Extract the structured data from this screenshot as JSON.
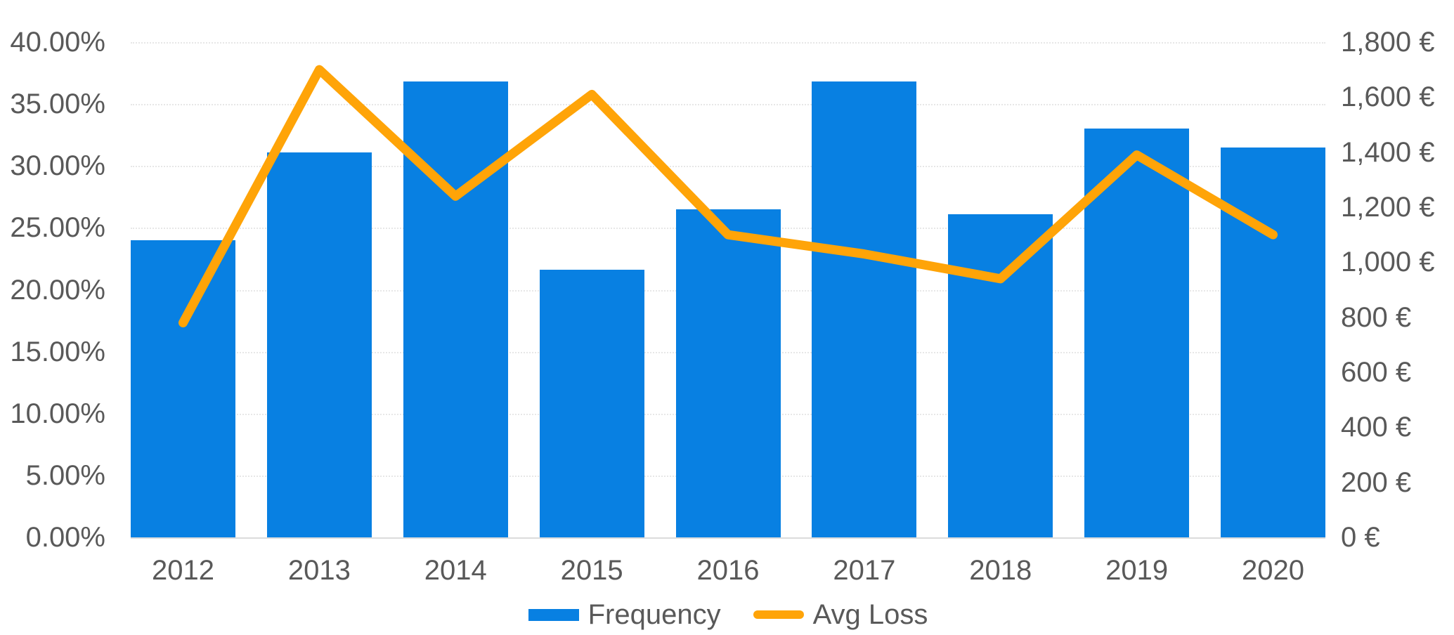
{
  "chart_data": {
    "type": "bar",
    "subtype": "combo-bar-line-dual-axis",
    "title": "",
    "categories": [
      "2012",
      "2013",
      "2014",
      "2015",
      "2016",
      "2017",
      "2018",
      "2019",
      "2020"
    ],
    "series": [
      {
        "name": "Frequency",
        "type": "bar",
        "axis": "left",
        "unit": "percent",
        "color": "#0880e2",
        "values": [
          24.0,
          31.1,
          36.8,
          21.6,
          26.5,
          36.8,
          26.1,
          33.0,
          31.5
        ]
      },
      {
        "name": "Avg Loss",
        "type": "line",
        "axis": "right",
        "unit": "EUR",
        "color": "#ffa408",
        "values": [
          780,
          1700,
          1240,
          1610,
          1100,
          1030,
          940,
          1390,
          1100
        ]
      }
    ],
    "left_axis": {
      "min": 0,
      "max": 40,
      "step": 5,
      "format": "percent",
      "tick_labels": [
        "40.00%",
        "35.00%",
        "30.00%",
        "25.00%",
        "20.00%",
        "15.00%",
        "10.00%",
        "5.00%",
        "0.00%"
      ]
    },
    "right_axis": {
      "min": 0,
      "max": 1800,
      "step": 200,
      "format": "euro",
      "tick_labels": [
        "1,800 €",
        "1,600 €",
        "1,400 €",
        "1,200 €",
        "1,000 €",
        "800 €",
        "600 €",
        "400 €",
        "200 €",
        "0 €"
      ]
    },
    "grid": true,
    "legend_position": "bottom"
  },
  "legend": {
    "items": [
      {
        "label": "Frequency",
        "swatch": "bar"
      },
      {
        "label": "Avg Loss",
        "swatch": "line"
      }
    ]
  },
  "colors": {
    "text": "#595959",
    "gridline": "#e7e7e7",
    "axis_line": "#dcdcdc",
    "background": "#ffffff"
  }
}
